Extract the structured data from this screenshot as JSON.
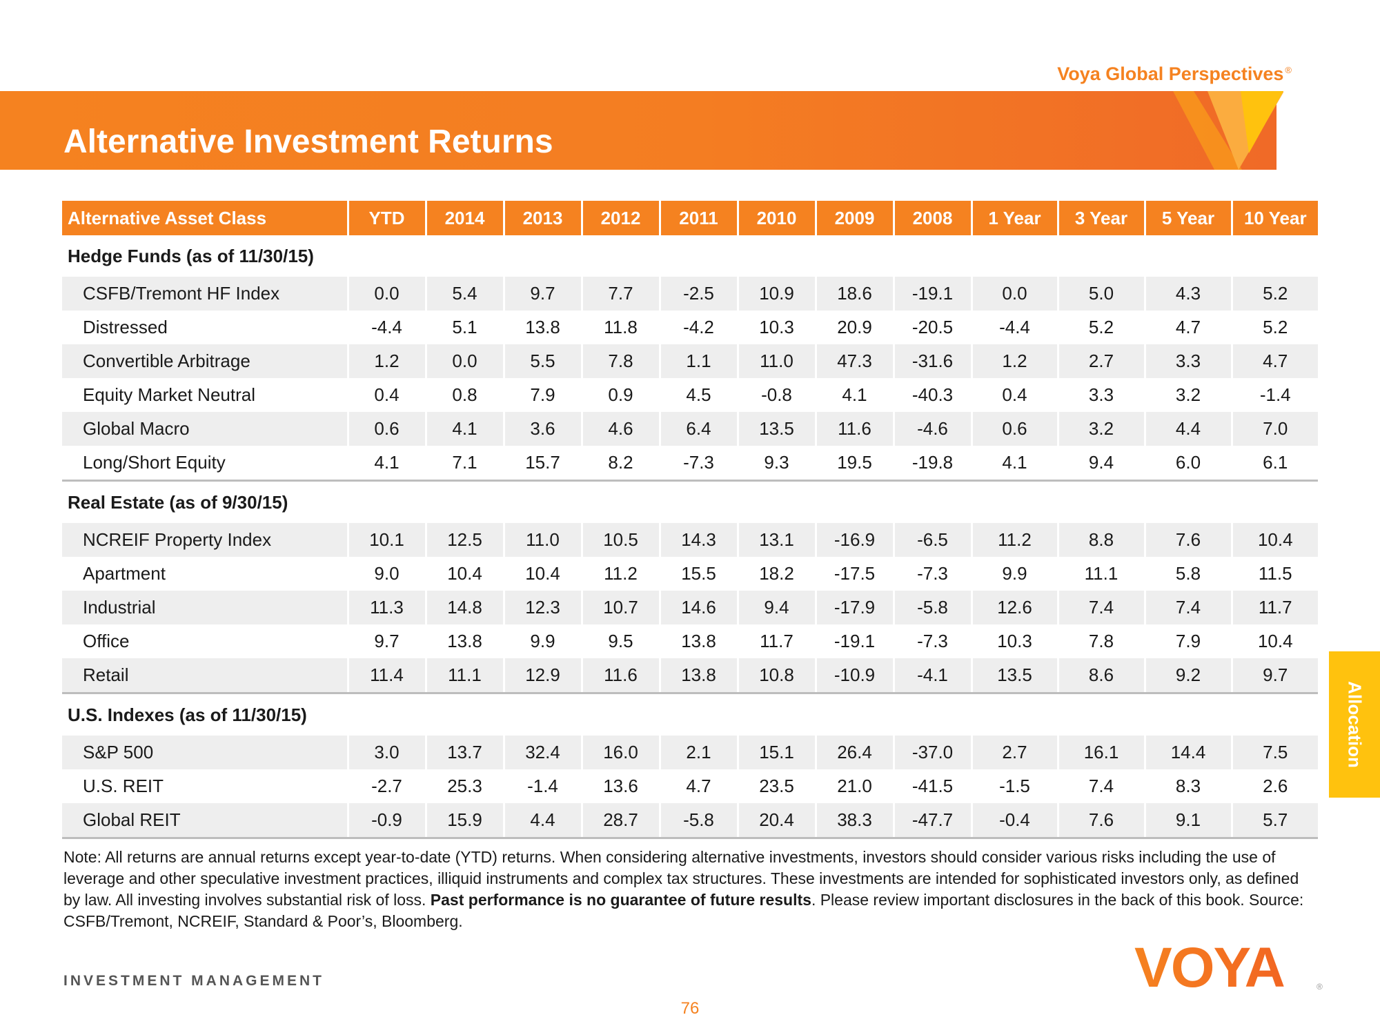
{
  "header": {
    "brand": "Voya Global Perspectives",
    "brand_mark": "®",
    "title": "Alternative Investment Returns"
  },
  "table": {
    "columns": [
      "Alternative Asset Class",
      "YTD",
      "2014",
      "2013",
      "2012",
      "2011",
      "2010",
      "2009",
      "2008",
      "1 Year",
      "3 Year",
      "5 Year",
      "10 Year"
    ],
    "sections": [
      {
        "title": "Hedge Funds (as of 11/30/15)",
        "rows": [
          {
            "name": "CSFB/Tremont HF Index",
            "values": [
              "0.0",
              "5.4",
              "9.7",
              "7.7",
              "-2.5",
              "10.9",
              "18.6",
              "-19.1",
              "0.0",
              "5.0",
              "4.3",
              "5.2"
            ]
          },
          {
            "name": "Distressed",
            "values": [
              "-4.4",
              "5.1",
              "13.8",
              "11.8",
              "-4.2",
              "10.3",
              "20.9",
              "-20.5",
              "-4.4",
              "5.2",
              "4.7",
              "5.2"
            ]
          },
          {
            "name": "Convertible Arbitrage",
            "values": [
              "1.2",
              "0.0",
              "5.5",
              "7.8",
              "1.1",
              "11.0",
              "47.3",
              "-31.6",
              "1.2",
              "2.7",
              "3.3",
              "4.7"
            ]
          },
          {
            "name": "Equity Market Neutral",
            "values": [
              "0.4",
              "0.8",
              "7.9",
              "0.9",
              "4.5",
              "-0.8",
              "4.1",
              "-40.3",
              "0.4",
              "3.3",
              "3.2",
              "-1.4"
            ]
          },
          {
            "name": "Global Macro",
            "values": [
              "0.6",
              "4.1",
              "3.6",
              "4.6",
              "6.4",
              "13.5",
              "11.6",
              "-4.6",
              "0.6",
              "3.2",
              "4.4",
              "7.0"
            ]
          },
          {
            "name": "Long/Short Equity",
            "values": [
              "4.1",
              "7.1",
              "15.7",
              "8.2",
              "-7.3",
              "9.3",
              "19.5",
              "-19.8",
              "4.1",
              "9.4",
              "6.0",
              "6.1"
            ]
          }
        ]
      },
      {
        "title": "Real Estate (as of 9/30/15)",
        "rows": [
          {
            "name": "NCREIF Property Index",
            "values": [
              "10.1",
              "12.5",
              "11.0",
              "10.5",
              "14.3",
              "13.1",
              "-16.9",
              "-6.5",
              "11.2",
              "8.8",
              "7.6",
              "10.4"
            ]
          },
          {
            "name": "Apartment",
            "values": [
              "9.0",
              "10.4",
              "10.4",
              "11.2",
              "15.5",
              "18.2",
              "-17.5",
              "-7.3",
              "9.9",
              "11.1",
              "5.8",
              "11.5"
            ]
          },
          {
            "name": "Industrial",
            "values": [
              "11.3",
              "14.8",
              "12.3",
              "10.7",
              "14.6",
              "9.4",
              "-17.9",
              "-5.8",
              "12.6",
              "7.4",
              "7.4",
              "11.7"
            ]
          },
          {
            "name": "Office",
            "values": [
              "9.7",
              "13.8",
              "9.9",
              "9.5",
              "13.8",
              "11.7",
              "-19.1",
              "-7.3",
              "10.3",
              "7.8",
              "7.9",
              "10.4"
            ]
          },
          {
            "name": "Retail",
            "values": [
              "11.4",
              "11.1",
              "12.9",
              "11.6",
              "13.8",
              "10.8",
              "-10.9",
              "-4.1",
              "13.5",
              "8.6",
              "9.2",
              "9.7"
            ]
          }
        ]
      },
      {
        "title": "U.S. Indexes  (as of 11/30/15)",
        "rows": [
          {
            "name": "S&P 500",
            "values": [
              "3.0",
              "13.7",
              "32.4",
              "16.0",
              "2.1",
              "15.1",
              "26.4",
              "-37.0",
              "2.7",
              "16.1",
              "14.4",
              "7.5"
            ]
          },
          {
            "name": "U.S. REIT",
            "values": [
              "-2.7",
              "25.3",
              "-1.4",
              "13.6",
              "4.7",
              "23.5",
              "21.0",
              "-41.5",
              "-1.5",
              "7.4",
              "8.3",
              "2.6"
            ]
          },
          {
            "name": "Global REIT",
            "values": [
              "-0.9",
              "15.9",
              "4.4",
              "28.7",
              "-5.8",
              "20.4",
              "38.3",
              "-47.7",
              "-0.4",
              "7.6",
              "9.1",
              "5.7"
            ]
          }
        ]
      }
    ]
  },
  "note": {
    "part1": "Note: All returns are annual returns except year-to-date (YTD) returns. When considering alternative investments, investors should consider various risks including the use of leverage and other speculative investment practices, illiquid instruments and complex tax structures. These investments are intended for sophisticated investors only, as defined by law. All investing involves substantial risk of loss. ",
    "bold": "Past performance is no guarantee of future results",
    "part2": ". Please review important disclosures in the back of this book. Source: CSFB/Tremont, NCREIF, Standard & Poor’s, Bloomberg."
  },
  "footer": {
    "left": "INVESTMENT MANAGEMENT",
    "page": "76",
    "logo_text": "VOYA",
    "logo_mark": "®"
  },
  "side_tab": {
    "label": "Allocation"
  },
  "colors": {
    "accent": "#f58220",
    "tab": "#ffc20e",
    "row_shade": "#eeeeee"
  }
}
